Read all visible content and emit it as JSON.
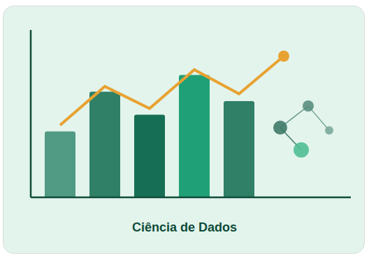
{
  "chart_data": {
    "type": "bar",
    "title": "Ciência de Dados",
    "categories": [
      null,
      null,
      null,
      null,
      null,
      null
    ],
    "series": [
      {
        "type": "bar",
        "colors": [
          "#519a84",
          "#2f8066",
          "#166f55",
          "#20a077",
          "#2f8066",
          "#2f8066"
        ],
        "values": [
          6.3,
          10.1,
          7.9,
          11.7,
          9.2,
          null
        ]
      },
      {
        "type": "line",
        "color": "#e8a232",
        "marker": "last",
        "values": [
          6.9,
          10.6,
          8.5,
          12.2,
          9.9,
          13.5
        ]
      }
    ],
    "ylim": [
      0,
      16
    ],
    "yticks": [
      1,
      5,
      9,
      13
    ],
    "grid": true,
    "tick_labels": false
  }
}
